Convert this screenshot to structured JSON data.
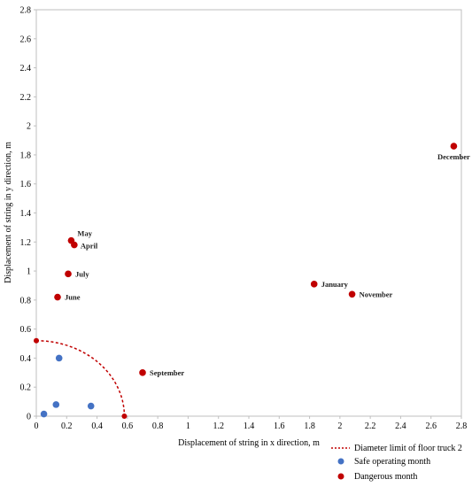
{
  "chart_data": {
    "type": "scatter",
    "title": "",
    "xlabel": "Displacement of string in x direction, m",
    "ylabel": "Displacement of string in y direction, m",
    "xlim": [
      0,
      2.8
    ],
    "ylim": [
      0,
      2.8
    ],
    "xticks": [
      "0",
      "0.2",
      "0.4",
      "0.6",
      "0.8",
      "1",
      "1.2",
      "1.4",
      "1.6",
      "1.8",
      "2",
      "2.2",
      "2.4",
      "2.6",
      "2.8"
    ],
    "yticks": [
      "0",
      "0.2",
      "0.4",
      "0.6",
      "0.8",
      "1",
      "1.2",
      "1.4",
      "1.6",
      "1.8",
      "2",
      "2.2",
      "2.4",
      "2.6",
      "2.8"
    ],
    "grid": false,
    "legend_position": "bottom-right",
    "series": [
      {
        "name": "Diameter limit of floor truck 2",
        "kind": "dashed-arc",
        "color": "#c00000",
        "rx": 0.58,
        "ry": 0.52,
        "endpoints": [
          {
            "x": 0.0,
            "y": 0.52
          },
          {
            "x": 0.58,
            "y": 0.0
          }
        ]
      },
      {
        "name": "Safe operating month",
        "kind": "points",
        "color": "#4472c4",
        "points": [
          {
            "x": 0.05,
            "y": 0.015
          },
          {
            "x": 0.13,
            "y": 0.08
          },
          {
            "x": 0.15,
            "y": 0.4
          },
          {
            "x": 0.36,
            "y": 0.07
          }
        ]
      },
      {
        "name": "Dangerous month",
        "kind": "points",
        "color": "#c00000",
        "points": [
          {
            "x": 0.23,
            "y": 1.21,
            "label": "May"
          },
          {
            "x": 0.25,
            "y": 1.18,
            "label": "April"
          },
          {
            "x": 0.21,
            "y": 0.98,
            "label": "July"
          },
          {
            "x": 0.14,
            "y": 0.82,
            "label": "June"
          },
          {
            "x": 0.7,
            "y": 0.3,
            "label": "September"
          },
          {
            "x": 1.83,
            "y": 0.91,
            "label": "January"
          },
          {
            "x": 2.08,
            "y": 0.84,
            "label": "November"
          },
          {
            "x": 2.75,
            "y": 1.86,
            "label": "December"
          }
        ]
      }
    ]
  }
}
